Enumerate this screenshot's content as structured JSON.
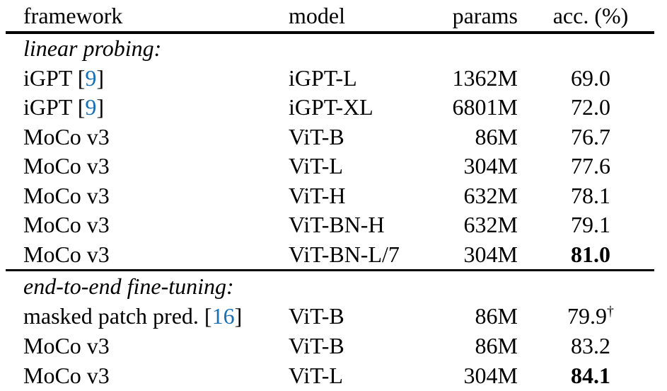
{
  "colors": {
    "citation_blue": "#1770b5",
    "text": "#000000",
    "background": "#ffffff"
  },
  "table": {
    "header": {
      "framework": "framework",
      "model": "model",
      "params": "params",
      "acc": "acc. (%)"
    },
    "rows": [
      {
        "type": "section",
        "label": "linear probing:"
      },
      {
        "fw": "iGPT [",
        "cite": "9",
        "fw_end": "]",
        "model": "iGPT-L",
        "params": "1362M",
        "acc": "69.0"
      },
      {
        "fw": "iGPT [",
        "cite": "9",
        "fw_end": "]",
        "model": "iGPT-XL",
        "params": "6801M",
        "acc": "72.0"
      },
      {
        "fw": "MoCo v3",
        "model": "ViT-B",
        "params": "86M",
        "acc": "76.7"
      },
      {
        "fw": "MoCo v3",
        "model": "ViT-L",
        "params": "304M",
        "acc": "77.6"
      },
      {
        "fw": "MoCo v3",
        "model": "ViT-H",
        "params": "632M",
        "acc": "78.1"
      },
      {
        "fw": "MoCo v3",
        "model": "ViT-BN-H",
        "params": "632M",
        "acc": "79.1"
      },
      {
        "fw": "MoCo v3",
        "model": "ViT-BN-L/7",
        "params": "304M",
        "acc": "81.0",
        "acc_bold": true
      },
      {
        "type": "section",
        "label": "end-to-end fine-tuning:"
      },
      {
        "fw": "masked patch pred. [",
        "cite": "16",
        "fw_end": "]",
        "model": "ViT-B",
        "params": "86M",
        "acc": "79.9",
        "acc_sup": "†"
      },
      {
        "fw": "MoCo v3",
        "model": "ViT-B",
        "params": "86M",
        "acc": "83.2"
      },
      {
        "fw": "MoCo v3",
        "model": "ViT-L",
        "params": "304M",
        "acc": "84.1",
        "acc_bold": true
      }
    ]
  }
}
